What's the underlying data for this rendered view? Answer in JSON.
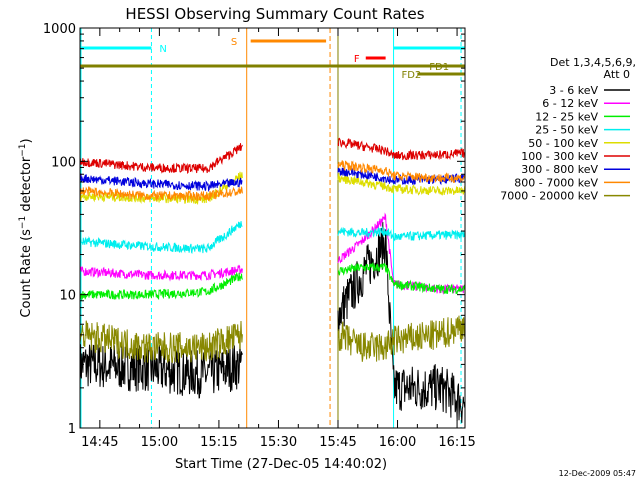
{
  "chart_data": {
    "type": "line",
    "title": "HESSI Observing Summary Count Rates",
    "xlabel": "Start Time (27-Dec-05 14:40:02)",
    "ylabel": "Count Rate (s⁻¹ detector⁻¹)",
    "ylabel_main": "Count Rate (s",
    "ylabel_sup1": "−1",
    "ylabel_mid": " detector",
    "ylabel_sup2": "−1",
    "ylabel_end": ")",
    "y_scale": "log",
    "ylim": [
      1,
      1000
    ],
    "xlim": [
      "14:40",
      "16:17"
    ],
    "x_ticks": [
      "14:45",
      "15:00",
      "15:15",
      "15:30",
      "15:45",
      "16:00",
      "16:15"
    ],
    "y_ticks": [
      "1",
      "10",
      "100",
      "1000"
    ],
    "grid": false,
    "legend_header": [
      "Det 1,3,4,5,6,9,",
      "Att 0"
    ],
    "legend_position": "right",
    "footer": "12-Dec-2009 05:47",
    "gap": [
      "15:21",
      "15:44"
    ],
    "series": [
      {
        "name": "3 - 6 keV",
        "color": "#000000",
        "before": [
          3,
          2.8,
          2.5,
          3
        ],
        "after": [
          7,
          14,
          25,
          2,
          2,
          1.5
        ]
      },
      {
        "name": "6 - 12 keV",
        "color": "#ff00ff",
        "before": [
          15,
          14,
          14,
          15.5
        ],
        "after": [
          18,
          25,
          38,
          12,
          11,
          11
        ]
      },
      {
        "name": "12 - 25 keV",
        "color": "#00ee00",
        "before": [
          10,
          10,
          10.5,
          14
        ],
        "after": [
          15,
          16,
          16,
          12,
          11,
          11
        ]
      },
      {
        "name": "25 - 50 keV",
        "color": "#00eeee",
        "before": [
          25,
          23,
          22,
          35
        ],
        "after": [
          30,
          29,
          30,
          27,
          28,
          28
        ]
      },
      {
        "name": "50 - 100 keV",
        "color": "#dddd00",
        "before": [
          55,
          53,
          52,
          80
        ],
        "after": [
          75,
          70,
          65,
          62,
          60,
          60
        ]
      },
      {
        "name": "100 - 300 keV",
        "color": "#dd0000",
        "before": [
          100,
          90,
          88,
          130
        ],
        "after": [
          140,
          130,
          120,
          110,
          112,
          115
        ]
      },
      {
        "name": "300 - 800 keV",
        "color": "#0000dd",
        "before": [
          75,
          68,
          65,
          70
        ],
        "after": [
          85,
          80,
          75,
          72,
          73,
          75
        ]
      },
      {
        "name": "800 - 7000 keV",
        "color": "#ff8800",
        "before": [
          60,
          55,
          55,
          60
        ],
        "after": [
          95,
          90,
          85,
          78,
          75,
          75
        ]
      },
      {
        "name": "7000 - 20000 keV",
        "color": "#888800",
        "before": [
          5,
          4,
          4,
          5
        ],
        "after": [
          5,
          4,
          4,
          4.5,
          5,
          6
        ]
      }
    ],
    "annotations": {
      "N": {
        "label": "N",
        "color": "#00ffff"
      },
      "S": {
        "label": "S",
        "color": "#ff8800"
      },
      "F": {
        "label": "F",
        "color": "#ff0000"
      },
      "FD1": {
        "label": "FD1",
        "color": "#808000"
      },
      "FD2": {
        "label": "FD2",
        "color": "#808000"
      }
    }
  }
}
